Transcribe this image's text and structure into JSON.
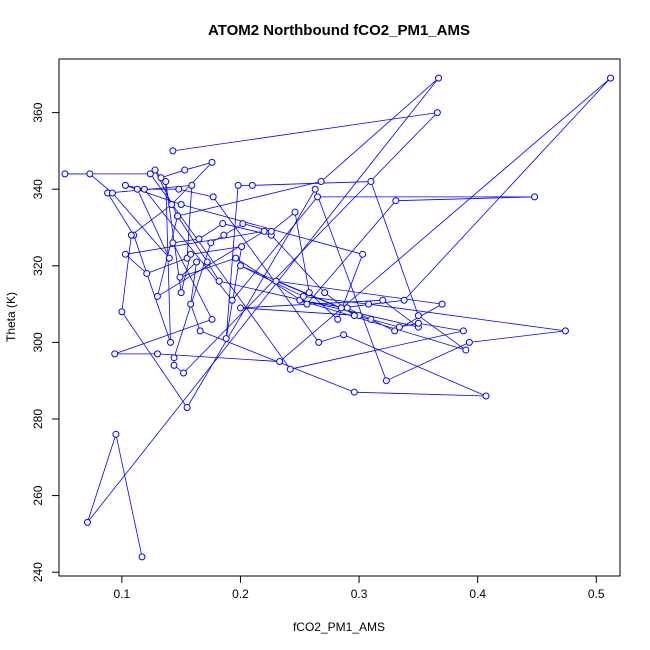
{
  "chart_data": {
    "type": "line",
    "title": "ATOM2 Northbound fCO2_PM1_AMS",
    "xlabel": "fCO2_PM1_AMS",
    "ylabel": "Theta (K)",
    "xlim": [
      0.047,
      0.52
    ],
    "ylim": [
      239,
      374
    ],
    "x_ticks": [
      0.1,
      0.2,
      0.3,
      0.4,
      0.5
    ],
    "x_tick_labels": [
      "0.1",
      "0.2",
      "0.3",
      "0.4",
      "0.5"
    ],
    "y_ticks": [
      240,
      260,
      280,
      300,
      320,
      340,
      360
    ],
    "y_tick_labels": [
      "240",
      "260",
      "280",
      "300",
      "320",
      "340",
      "360"
    ],
    "grid": false,
    "series_color": "#0000ff",
    "marker": "open-circle",
    "series": [
      {
        "x": [
          0.117,
          0.095,
          0.071,
          0.367,
          0.268,
          0.147,
          0.13,
          0.22,
          0.103,
          0.121,
          0.155,
          0.159,
          0.088,
          0.11,
          0.141,
          0.137,
          0.15,
          0.158,
          0.201,
          0.188,
          0.198,
          0.21,
          0.31,
          0.35,
          0.39,
          0.25,
          0.29,
          0.33,
          0.37,
          0.23,
          0.3,
          0.2,
          0.32,
          0.35,
          0.182,
          0.172,
          0.147,
          0.128,
          0.133,
          0.153,
          0.176,
          0.142,
          0.108,
          0.1,
          0.155,
          0.263,
          0.323,
          0.393,
          0.474,
          0.308,
          0.253,
          0.2,
          0.285,
          0.338,
          0.512,
          0.233,
          0.13,
          0.094,
          0.176,
          0.143,
          0.165,
          0.185,
          0.226,
          0.271,
          0.296,
          0.31,
          0.334,
          0.35,
          0.388,
          0.242,
          0.124,
          0.052,
          0.073,
          0.092,
          0.14,
          0.113,
          0.148,
          0.177,
          0.266,
          0.287,
          0.407,
          0.296,
          0.166,
          0.158,
          0.163,
          0.149,
          0.196,
          0.256,
          0.331,
          0.448,
          0.265,
          0.193,
          0.119,
          0.103,
          0.15,
          0.303,
          0.282,
          0.258,
          0.246,
          0.226,
          0.202,
          0.186,
          0.175,
          0.144,
          0.144,
          0.152,
          0.366,
          0.143
        ],
        "y": [
          244,
          276,
          253,
          369,
          342,
          333,
          312,
          329,
          323,
          318,
          322,
          341,
          339,
          328,
          300,
          342,
          313,
          323,
          325,
          301,
          341,
          341,
          342,
          307,
          298,
          311,
          309,
          303,
          310,
          316,
          307,
          309,
          311,
          304,
          316,
          321,
          333,
          345,
          343,
          345,
          347,
          336,
          328,
          308,
          283,
          340,
          290,
          300,
          303,
          310,
          312,
          320,
          309,
          311,
          369,
          295,
          297,
          297,
          306,
          326,
          327,
          331,
          328,
          313,
          307,
          306,
          304,
          305,
          303,
          293,
          344,
          344,
          344,
          339,
          322,
          340,
          340,
          338,
          300,
          302,
          286,
          287,
          303,
          310,
          321,
          317,
          322,
          310,
          337,
          338,
          338,
          311,
          340,
          341,
          336,
          323,
          306,
          313,
          334,
          329,
          331,
          328,
          326,
          296,
          294,
          292,
          360,
          350
        ]
      }
    ]
  }
}
